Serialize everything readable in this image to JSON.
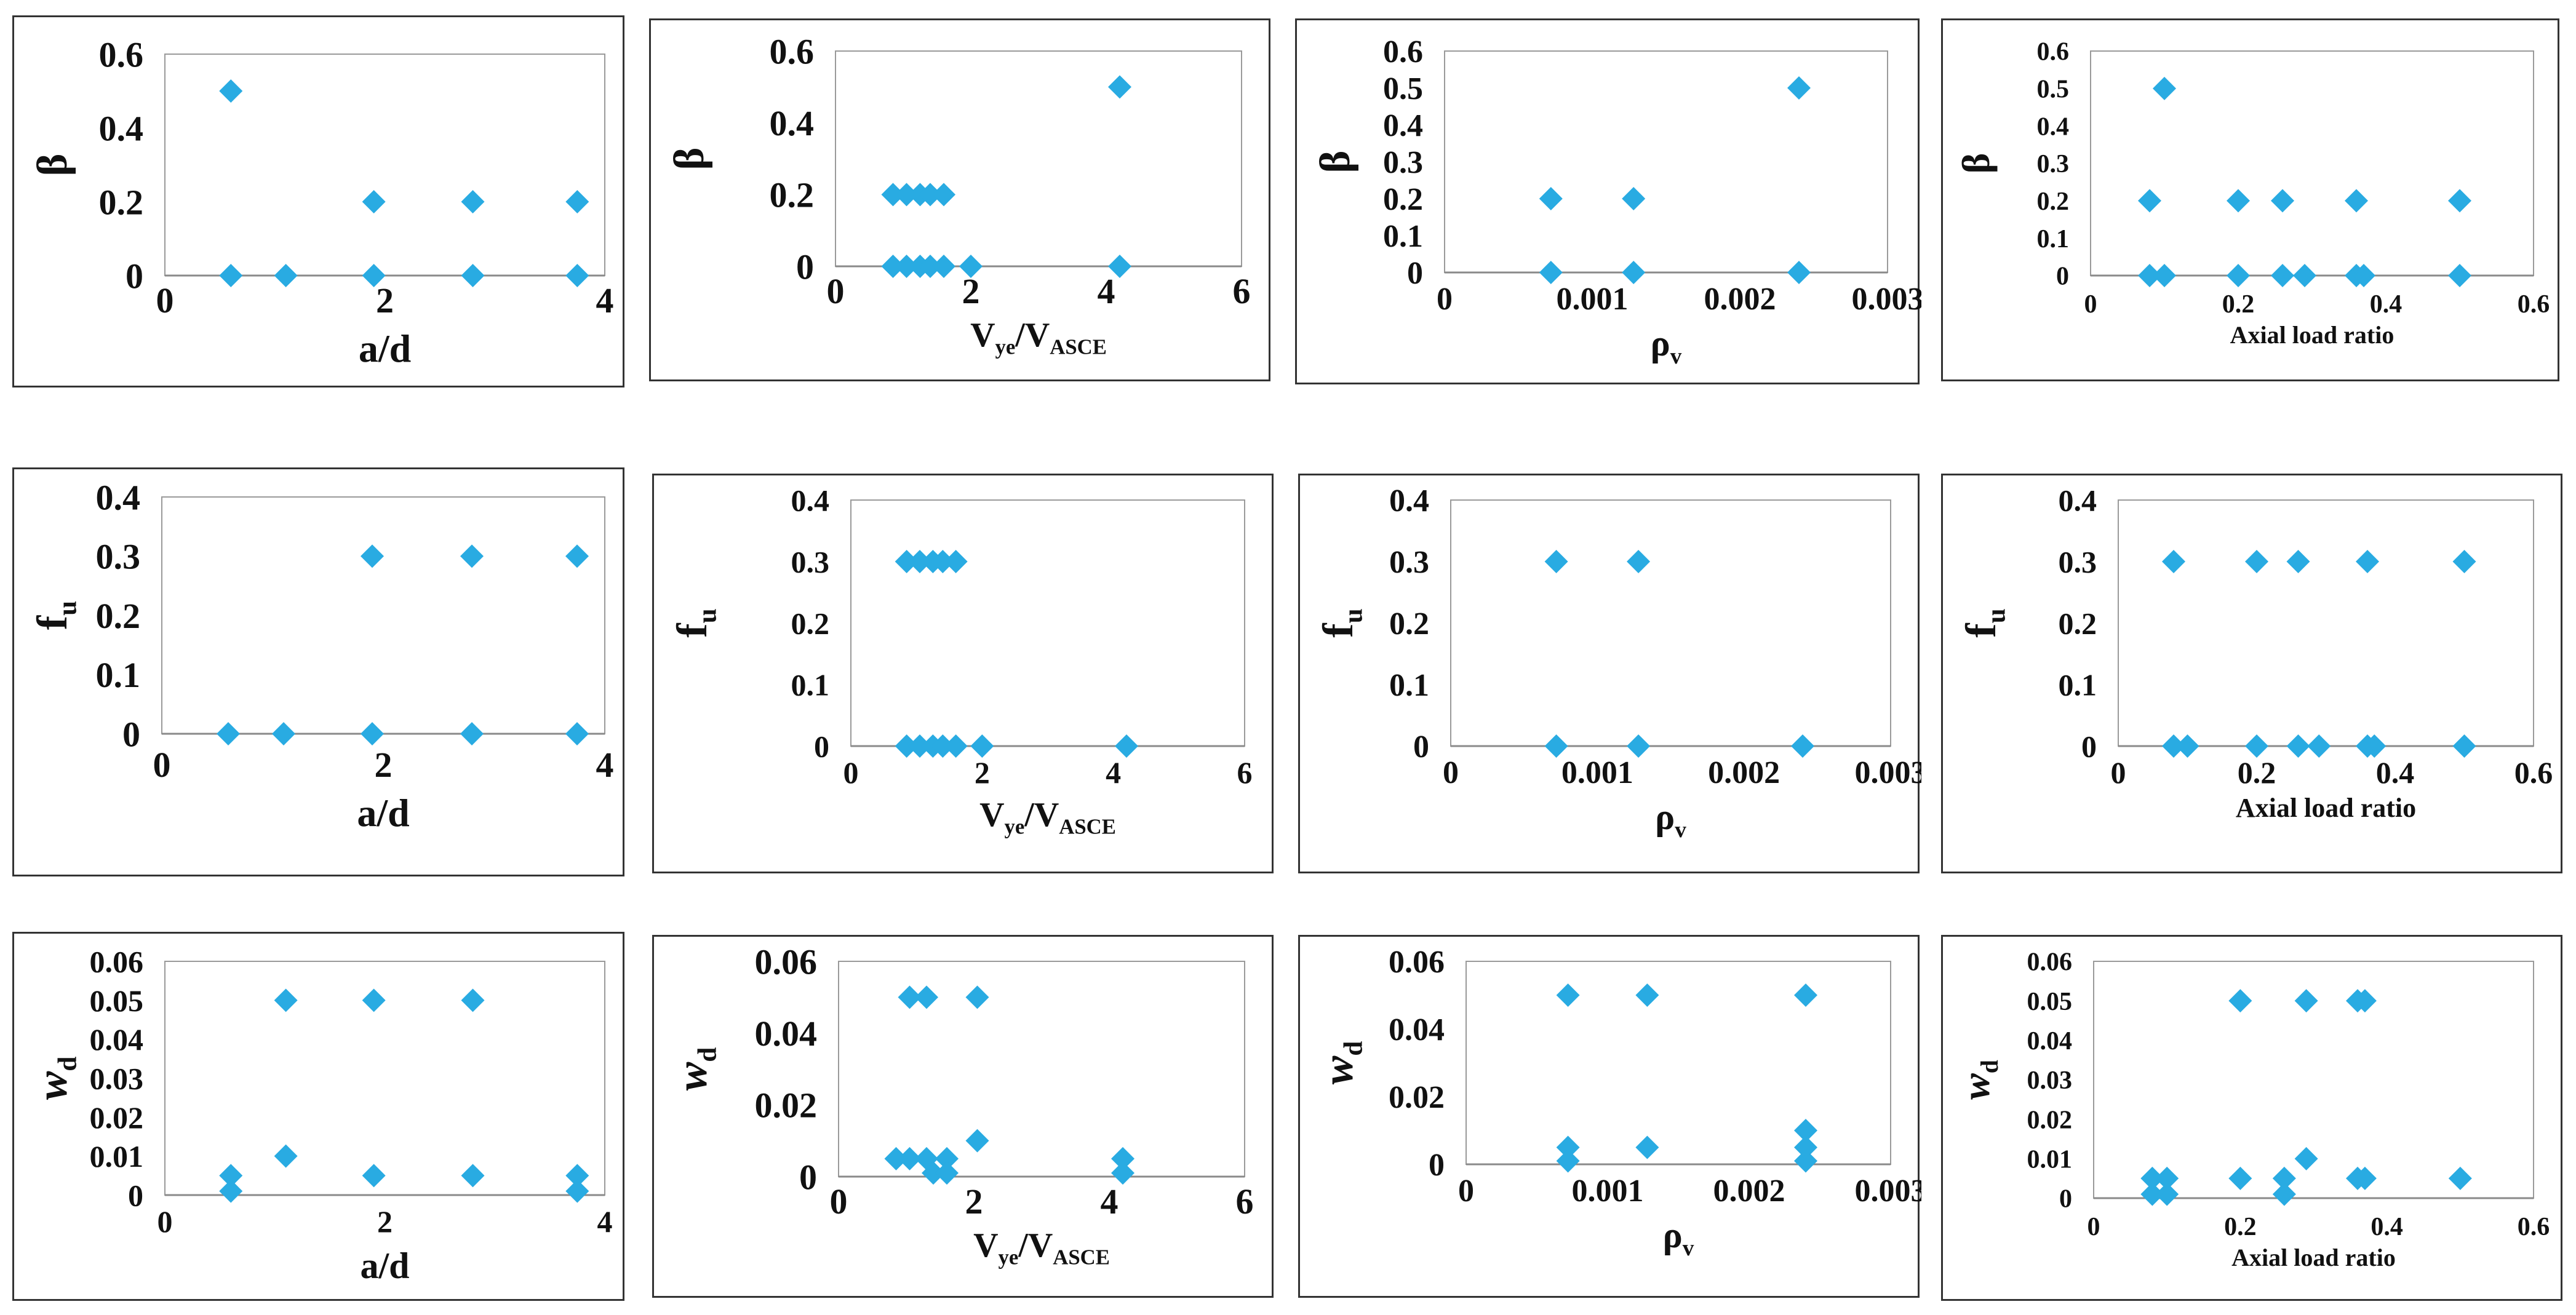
{
  "series_color": "#29ABE2",
  "chart_data": [
    {
      "type": "scatter",
      "title": "",
      "xlabel": "a/d",
      "xlabel_sub": "",
      "ylabel": "β",
      "ylabel_sub": "",
      "xlim": [
        0,
        4
      ],
      "ylim": [
        0,
        0.6
      ],
      "xticks": [
        "0",
        "2",
        "4"
      ],
      "xtick_values": [
        0,
        2,
        4
      ],
      "yticks": [
        "0",
        "0.2",
        "0.4",
        "0.6"
      ],
      "ytick_values": [
        0,
        0.2,
        0.4,
        0.6
      ],
      "grid": false,
      "legend": "none",
      "x": [
        0.6,
        0.6,
        1.1,
        1.9,
        1.9,
        2.8,
        2.8,
        3.75,
        3.75
      ],
      "y": [
        0.5,
        0,
        0,
        0.2,
        0,
        0.2,
        0,
        0.2,
        0
      ]
    },
    {
      "type": "scatter",
      "title": "",
      "xlabel": "V",
      "xlabel_sub": "ye",
      "xlabel_tail": "/V",
      "xlabel_tail_sub": "ASCE",
      "ylabel": "β",
      "ylabel_sub": "",
      "xlim": [
        0,
        6
      ],
      "ylim": [
        0,
        0.6
      ],
      "xticks": [
        "0",
        "2",
        "4",
        "6"
      ],
      "xtick_values": [
        0,
        2,
        4,
        6
      ],
      "yticks": [
        "0",
        "0.2",
        "0.4",
        "0.6"
      ],
      "ytick_values": [
        0,
        0.2,
        0.4,
        0.6
      ],
      "grid": false,
      "legend": "none",
      "x": [
        0.85,
        1.05,
        1.25,
        1.4,
        1.6,
        0.85,
        1.05,
        1.25,
        1.4,
        1.6,
        2.0,
        4.2,
        4.2
      ],
      "y": [
        0.2,
        0.2,
        0.2,
        0.2,
        0.2,
        0,
        0,
        0,
        0,
        0,
        0,
        0.5,
        0
      ]
    },
    {
      "type": "scatter",
      "title": "",
      "xlabel": "ρ",
      "xlabel_sub": "v",
      "ylabel": "β",
      "ylabel_sub": "",
      "xlim": [
        0,
        0.003
      ],
      "ylim": [
        0,
        0.6
      ],
      "xticks": [
        "0",
        "0.001",
        "0.002",
        "0.003"
      ],
      "xtick_values": [
        0,
        0.001,
        0.002,
        0.003
      ],
      "yticks": [
        "0",
        "0.1",
        "0.2",
        "0.3",
        "0.4",
        "0.5",
        "0.6"
      ],
      "ytick_values": [
        0,
        0.1,
        0.2,
        0.3,
        0.4,
        0.5,
        0.6
      ],
      "grid": false,
      "legend": "none",
      "x": [
        0.00072,
        0.00072,
        0.00128,
        0.00128,
        0.0024,
        0.0024
      ],
      "y": [
        0.2,
        0,
        0.2,
        0,
        0.5,
        0
      ]
    },
    {
      "type": "scatter",
      "title": "",
      "xlabel": "Axial load ratio",
      "xlabel_sub": "",
      "ylabel": "β",
      "ylabel_sub": "",
      "xlim": [
        0,
        0.6
      ],
      "ylim": [
        0,
        0.6
      ],
      "xticks": [
        "0",
        "0.2",
        "0.4",
        "0.6"
      ],
      "xtick_values": [
        0,
        0.2,
        0.4,
        0.6
      ],
      "yticks": [
        "0",
        "0.1",
        "0.2",
        "0.3",
        "0.4",
        "0.5",
        "0.6"
      ],
      "ytick_values": [
        0,
        0.1,
        0.2,
        0.3,
        0.4,
        0.5,
        0.6
      ],
      "grid": false,
      "legend": "none",
      "x": [
        0.08,
        0.08,
        0.1,
        0.1,
        0.2,
        0.2,
        0.26,
        0.26,
        0.29,
        0.36,
        0.36,
        0.37,
        0.5,
        0.5
      ],
      "y": [
        0.2,
        0,
        0.5,
        0,
        0.2,
        0,
        0.2,
        0,
        0,
        0.2,
        0,
        0,
        0.2,
        0
      ]
    },
    {
      "type": "scatter",
      "title": "",
      "xlabel": "a/d",
      "xlabel_sub": "",
      "ylabel": "f",
      "ylabel_sub": "u",
      "xlim": [
        0,
        4
      ],
      "ylim": [
        0,
        0.4
      ],
      "xticks": [
        "0",
        "2",
        "4"
      ],
      "xtick_values": [
        0,
        2,
        4
      ],
      "yticks": [
        "0",
        "0.1",
        "0.2",
        "0.3",
        "0.4"
      ],
      "ytick_values": [
        0,
        0.1,
        0.2,
        0.3,
        0.4
      ],
      "grid": false,
      "legend": "none",
      "x": [
        0.6,
        1.1,
        1.9,
        1.9,
        2.8,
        2.8,
        3.75,
        3.75
      ],
      "y": [
        0,
        0,
        0.3,
        0,
        0.3,
        0,
        0.3,
        0
      ]
    },
    {
      "type": "scatter",
      "title": "",
      "xlabel": "V",
      "xlabel_sub": "ye",
      "xlabel_tail": "/V",
      "xlabel_tail_sub": "ASCE",
      "ylabel": "f",
      "ylabel_sub": "u",
      "xlim": [
        0,
        6
      ],
      "ylim": [
        0,
        0.4
      ],
      "xticks": [
        "0",
        "2",
        "4",
        "6"
      ],
      "xtick_values": [
        0,
        2,
        4,
        6
      ],
      "yticks": [
        "0",
        "0.1",
        "0.2",
        "0.3",
        "0.4"
      ],
      "ytick_values": [
        0,
        0.1,
        0.2,
        0.3,
        0.4
      ],
      "grid": false,
      "legend": "none",
      "x": [
        0.85,
        1.05,
        1.25,
        1.4,
        1.6,
        0.85,
        1.05,
        1.25,
        1.4,
        1.6,
        2.0,
        4.2
      ],
      "y": [
        0.3,
        0.3,
        0.3,
        0.3,
        0.3,
        0,
        0,
        0,
        0,
        0,
        0,
        0
      ]
    },
    {
      "type": "scatter",
      "title": "",
      "xlabel": "ρ",
      "xlabel_sub": "v",
      "ylabel": "f",
      "ylabel_sub": "u",
      "xlim": [
        0,
        0.003
      ],
      "ylim": [
        0,
        0.4
      ],
      "xticks": [
        "0",
        "0.001",
        "0.002",
        "0.003"
      ],
      "xtick_values": [
        0,
        0.001,
        0.002,
        0.003
      ],
      "yticks": [
        "0",
        "0.1",
        "0.2",
        "0.3",
        "0.4"
      ],
      "ytick_values": [
        0,
        0.1,
        0.2,
        0.3,
        0.4
      ],
      "grid": false,
      "legend": "none",
      "x": [
        0.00072,
        0.00072,
        0.00128,
        0.00128,
        0.0024
      ],
      "y": [
        0.3,
        0,
        0.3,
        0,
        0
      ]
    },
    {
      "type": "scatter",
      "title": "",
      "xlabel": "Axial load ratio",
      "xlabel_sub": "",
      "ylabel": "f",
      "ylabel_sub": "u",
      "xlim": [
        0,
        0.6
      ],
      "ylim": [
        0,
        0.4
      ],
      "xticks": [
        "0",
        "0.2",
        "0.4",
        "0.6"
      ],
      "xtick_values": [
        0,
        0.2,
        0.4,
        0.6
      ],
      "yticks": [
        "0",
        "0.1",
        "0.2",
        "0.3",
        "0.4"
      ],
      "ytick_values": [
        0,
        0.1,
        0.2,
        0.3,
        0.4
      ],
      "grid": false,
      "legend": "none",
      "x": [
        0.08,
        0.08,
        0.1,
        0.2,
        0.2,
        0.26,
        0.26,
        0.29,
        0.36,
        0.36,
        0.37,
        0.5,
        0.5
      ],
      "y": [
        0.3,
        0,
        0,
        0.3,
        0,
        0.3,
        0,
        0,
        0.3,
        0,
        0,
        0.3,
        0
      ]
    },
    {
      "type": "scatter",
      "title": "",
      "xlabel": "a/d",
      "xlabel_sub": "",
      "ylabel": "w",
      "ylabel_sub": "d",
      "xlim": [
        0,
        4
      ],
      "ylim": [
        0,
        0.06
      ],
      "xticks": [
        "0",
        "2",
        "4"
      ],
      "xtick_values": [
        0,
        2,
        4
      ],
      "yticks": [
        "0",
        "0.01",
        "0.02",
        "0.03",
        "0.04",
        "0.05",
        "0.06"
      ],
      "ytick_values": [
        0,
        0.01,
        0.02,
        0.03,
        0.04,
        0.05,
        0.06
      ],
      "grid": false,
      "legend": "none",
      "x": [
        0.6,
        0.6,
        1.1,
        1.1,
        1.9,
        1.9,
        2.8,
        2.8,
        3.75,
        3.75
      ],
      "y": [
        0.005,
        0.001,
        0.05,
        0.01,
        0.05,
        0.005,
        0.05,
        0.005,
        0.005,
        0.001
      ]
    },
    {
      "type": "scatter",
      "title": "",
      "xlabel": "V",
      "xlabel_sub": "ye",
      "xlabel_tail": "/V",
      "xlabel_tail_sub": "ASCE",
      "ylabel": "w",
      "ylabel_sub": "d",
      "xlim": [
        0,
        6
      ],
      "ylim": [
        0,
        0.06
      ],
      "xticks": [
        "0",
        "2",
        "4",
        "6"
      ],
      "xtick_values": [
        0,
        2,
        4,
        6
      ],
      "yticks": [
        "0",
        "0.02",
        "0.04",
        "0.06"
      ],
      "ytick_values": [
        0,
        0.02,
        0.04,
        0.06
      ],
      "grid": false,
      "legend": "none",
      "x": [
        0.85,
        1.05,
        1.05,
        1.3,
        1.3,
        1.4,
        1.6,
        1.6,
        2.05,
        2.05,
        4.2,
        4.2
      ],
      "y": [
        0.005,
        0.05,
        0.005,
        0.05,
        0.005,
        0.001,
        0.005,
        0.001,
        0.05,
        0.01,
        0.005,
        0.001
      ]
    },
    {
      "type": "scatter",
      "title": "",
      "xlabel": "ρ",
      "xlabel_sub": "v",
      "ylabel": "w",
      "ylabel_sub": "d",
      "xlim": [
        0,
        0.003
      ],
      "ylim": [
        0,
        0.06
      ],
      "xticks": [
        "0",
        "0.001",
        "0.002",
        "0.003"
      ],
      "xtick_values": [
        0,
        0.001,
        0.002,
        0.003
      ],
      "yticks": [
        "0",
        "0.02",
        "0.04",
        "0.06"
      ],
      "ytick_values": [
        0,
        0.02,
        0.04,
        0.06
      ],
      "grid": false,
      "legend": "none",
      "x": [
        0.00072,
        0.00072,
        0.00072,
        0.00128,
        0.00128,
        0.0024,
        0.0024,
        0.0024,
        0.0024
      ],
      "y": [
        0.05,
        0.005,
        0.001,
        0.05,
        0.005,
        0.05,
        0.01,
        0.005,
        0.001
      ]
    },
    {
      "type": "scatter",
      "title": "",
      "xlabel": "Axial load ratio",
      "xlabel_sub": "",
      "ylabel": "w",
      "ylabel_sub": "d",
      "xlim": [
        0,
        0.6
      ],
      "ylim": [
        0,
        0.06
      ],
      "xticks": [
        "0",
        "0.2",
        "0.4",
        "0.6"
      ],
      "xtick_values": [
        0,
        0.2,
        0.4,
        0.6
      ],
      "yticks": [
        "0",
        "0.01",
        "0.02",
        "0.03",
        "0.04",
        "0.05",
        "0.06"
      ],
      "ytick_values": [
        0,
        0.01,
        0.02,
        0.03,
        0.04,
        0.05,
        0.06
      ],
      "grid": false,
      "legend": "none",
      "x": [
        0.08,
        0.08,
        0.1,
        0.1,
        0.2,
        0.2,
        0.26,
        0.26,
        0.29,
        0.29,
        0.36,
        0.36,
        0.37,
        0.37,
        0.5
      ],
      "y": [
        0.005,
        0.001,
        0.005,
        0.001,
        0.05,
        0.005,
        0.005,
        0.001,
        0.05,
        0.01,
        0.05,
        0.005,
        0.05,
        0.005,
        0.005
      ]
    }
  ]
}
